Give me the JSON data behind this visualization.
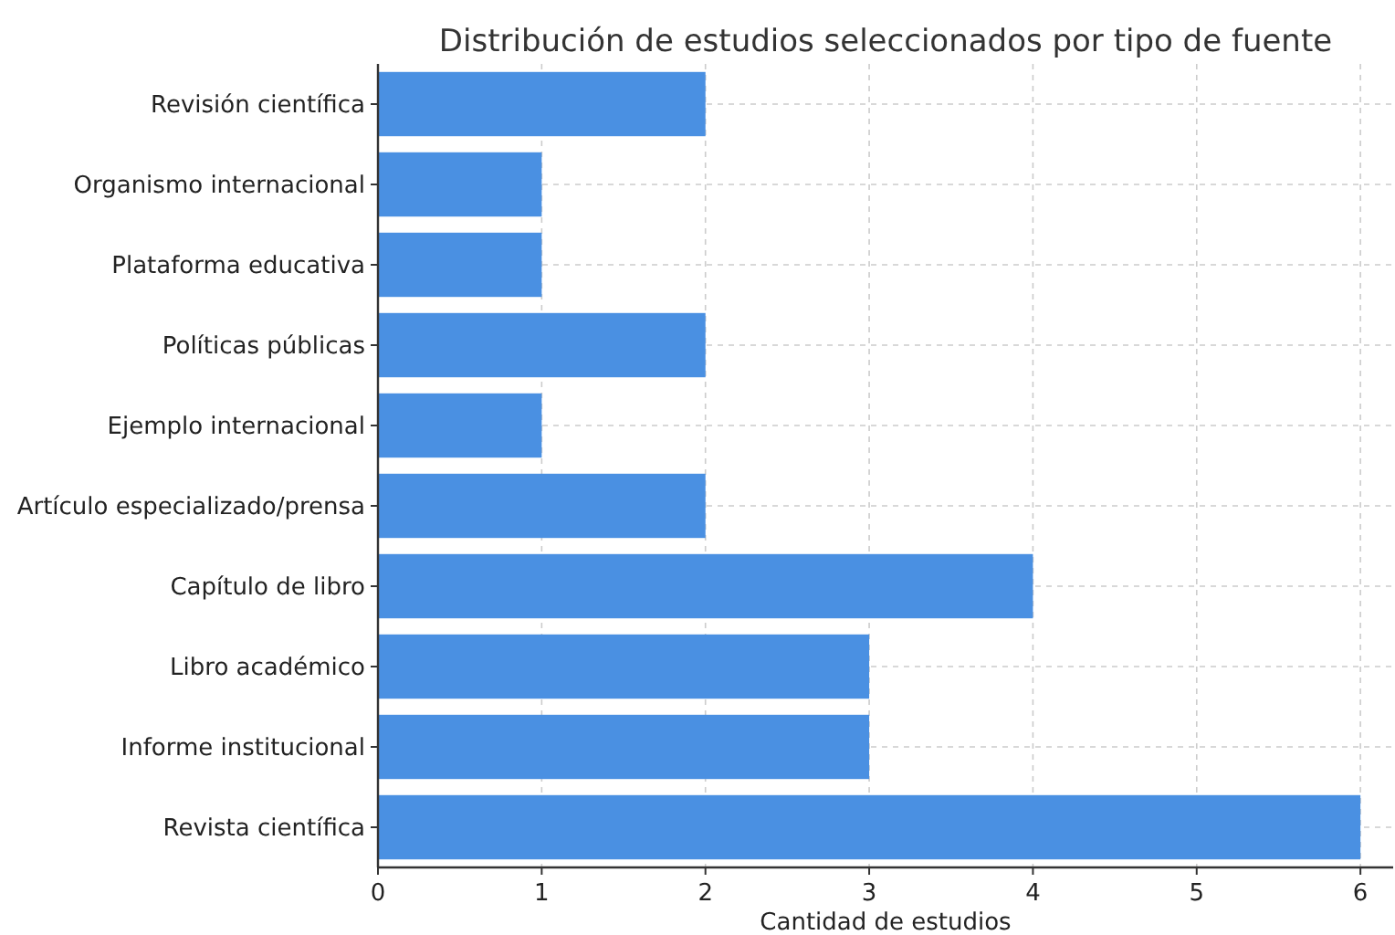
{
  "chart_data": {
    "type": "bar",
    "orientation": "horizontal",
    "title": "Distribución de estudios seleccionados por tipo de fuente",
    "xlabel": "Cantidad de estudios",
    "categories": [
      "Revisión científica",
      "Organismo internacional",
      "Plataforma educativa",
      "Políticas públicas",
      "Ejemplo internacional",
      "Artículo especializado/prensa",
      "Capítulo de libro",
      "Libro académico",
      "Informe institucional",
      "Revista científica"
    ],
    "values": [
      2,
      1,
      1,
      2,
      1,
      2,
      4,
      3,
      3,
      6
    ],
    "color": "#4a90e2",
    "xlim": [
      0,
      6.2
    ],
    "xticks": [
      0,
      1,
      2,
      3,
      4,
      5,
      6
    ],
    "grid": true
  }
}
